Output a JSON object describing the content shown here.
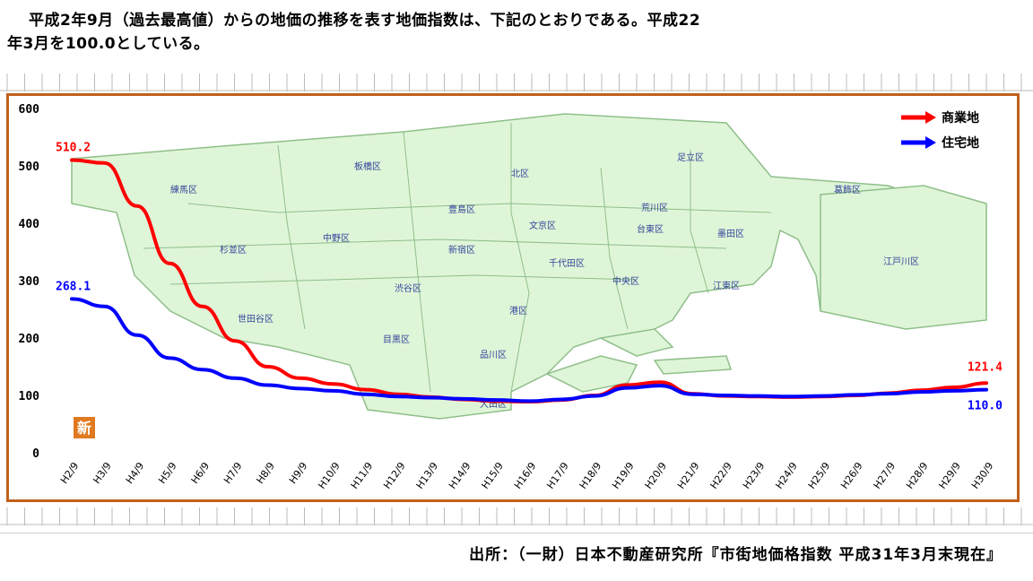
{
  "intro": {
    "line1": "平成2年9月（過去最高値）からの地価の推移を表す地価指数は、下記のとおりである。平成22",
    "line2": "年3月を100.0としている。"
  },
  "source": "出所：（一財）日本不動産研究所『市街地価格指数 平成31年3月末現在』",
  "colors": {
    "commercial": "#ff0000",
    "residential": "#0000ff",
    "frame": "#c0601a",
    "map_fill": "#dff5d8",
    "map_stroke": "#8fbf8a",
    "badge": "#e07a20"
  },
  "badge_label": "新",
  "chart_data": {
    "type": "line",
    "categories": [
      "H2/9",
      "H3/9",
      "H4/9",
      "H5/9",
      "H6/9",
      "H7/9",
      "H8/9",
      "H9/9",
      "H10/9",
      "H11/9",
      "H12/9",
      "H13/9",
      "H14/9",
      "H15/9",
      "H16/9",
      "H17/9",
      "H18/9",
      "H19/9",
      "H20/9",
      "H21/9",
      "H22/9",
      "H23/9",
      "H24/9",
      "H25/9",
      "H26/9",
      "H27/9",
      "H28/9",
      "H29/9",
      "H30/9"
    ],
    "ylim": [
      0,
      600
    ],
    "yticks": [
      0,
      100,
      200,
      300,
      400,
      500,
      600
    ],
    "series": [
      {
        "name": "商業地",
        "color": "#ff0000",
        "values": [
          510.2,
          505,
          430,
          330,
          255,
          195,
          150,
          130,
          120,
          110,
          102,
          97,
          93,
          90,
          89,
          92,
          100,
          118,
          123,
          103,
          99,
          98,
          97,
          98,
          100,
          104,
          109,
          114,
          121.4
        ],
        "start_label": "510.2",
        "end_label": "121.4"
      },
      {
        "name": "住宅地",
        "color": "#0000ff",
        "values": [
          268.1,
          255,
          205,
          165,
          145,
          130,
          118,
          112,
          108,
          102,
          98,
          96,
          94,
          92,
          90,
          93,
          99,
          113,
          117,
          102,
          100,
          99,
          98,
          99,
          101,
          103,
          106,
          108,
          110.0
        ],
        "start_label": "268.1",
        "end_label": "110.0"
      }
    ],
    "wards": [
      "練馬区",
      "板橋区",
      "北区",
      "足立区",
      "葛飾区",
      "荒川区",
      "豊島区",
      "文京区",
      "台東区",
      "墨田区",
      "江戸川区",
      "中野区",
      "杉並区",
      "新宿区",
      "千代田区",
      "中央区",
      "江東区",
      "渋谷区",
      "港区",
      "世田谷区",
      "目黒区",
      "品川区",
      "大田区"
    ]
  }
}
